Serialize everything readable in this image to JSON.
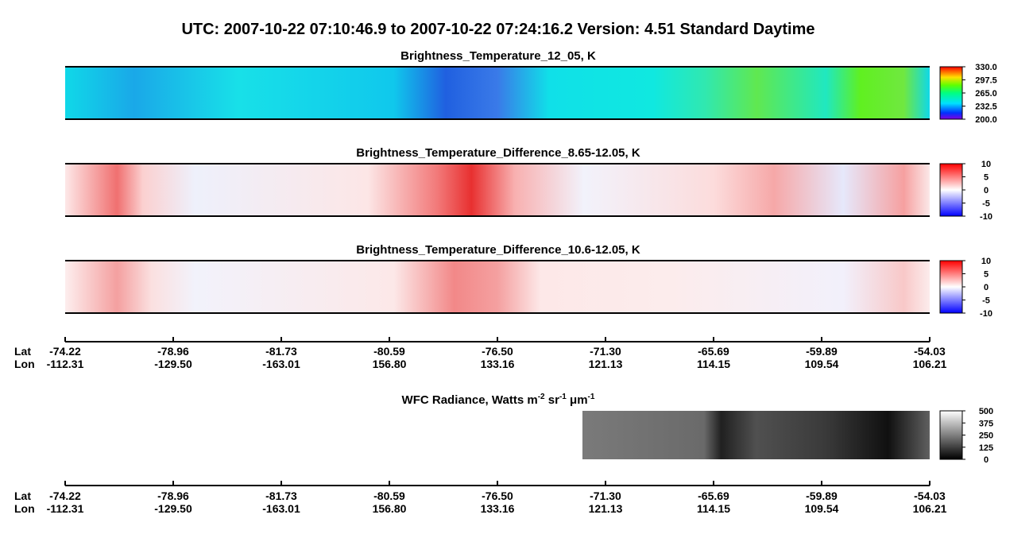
{
  "header": {
    "title": "UTC:  2007-10-22   07:10:46.9  to  2007-10-22   07:24:16.2    Version: 4.51  Standard Daytime"
  },
  "panels": [
    {
      "title": "Brightness_Temperature_12_05, K",
      "range": [
        200,
        330
      ],
      "ticks": [
        {
          "value": 200,
          "label": "200.0"
        },
        {
          "value": 232.5,
          "label": "232.5"
        },
        {
          "value": 265,
          "label": "265.0"
        },
        {
          "value": 297.5,
          "label": "297.5"
        },
        {
          "value": 330,
          "label": "330.0"
        }
      ]
    },
    {
      "title": "Brightness_Temperature_Difference_8.65-12.05, K",
      "range": [
        -10,
        10
      ],
      "ticks": [
        -10,
        -5,
        0,
        5,
        10
      ]
    },
    {
      "title": "Brightness_Temperature_Difference_10.6-12.05, K",
      "range": [
        -10,
        10
      ],
      "ticks": [
        -10,
        -5,
        0,
        5,
        10
      ]
    },
    {
      "title_parts": [
        "WFC Radiance, Watts m",
        "-2",
        " sr",
        "-1",
        " μm",
        "-1"
      ],
      "range": [
        0,
        500
      ],
      "ticks": [
        0,
        125,
        250,
        375,
        500
      ]
    }
  ],
  "axis": {
    "lat_label": "Lat",
    "lon_label": "Lon",
    "lat": [
      "-74.22",
      "-78.96",
      "-81.73",
      "-80.59",
      "-76.50",
      "-71.30",
      "-65.69",
      "-59.89",
      "-54.03"
    ],
    "lon": [
      "-112.31",
      "-129.50",
      "-163.01",
      "156.80",
      "133.16",
      "121.13",
      "114.15",
      "109.54",
      "106.21"
    ]
  }
}
